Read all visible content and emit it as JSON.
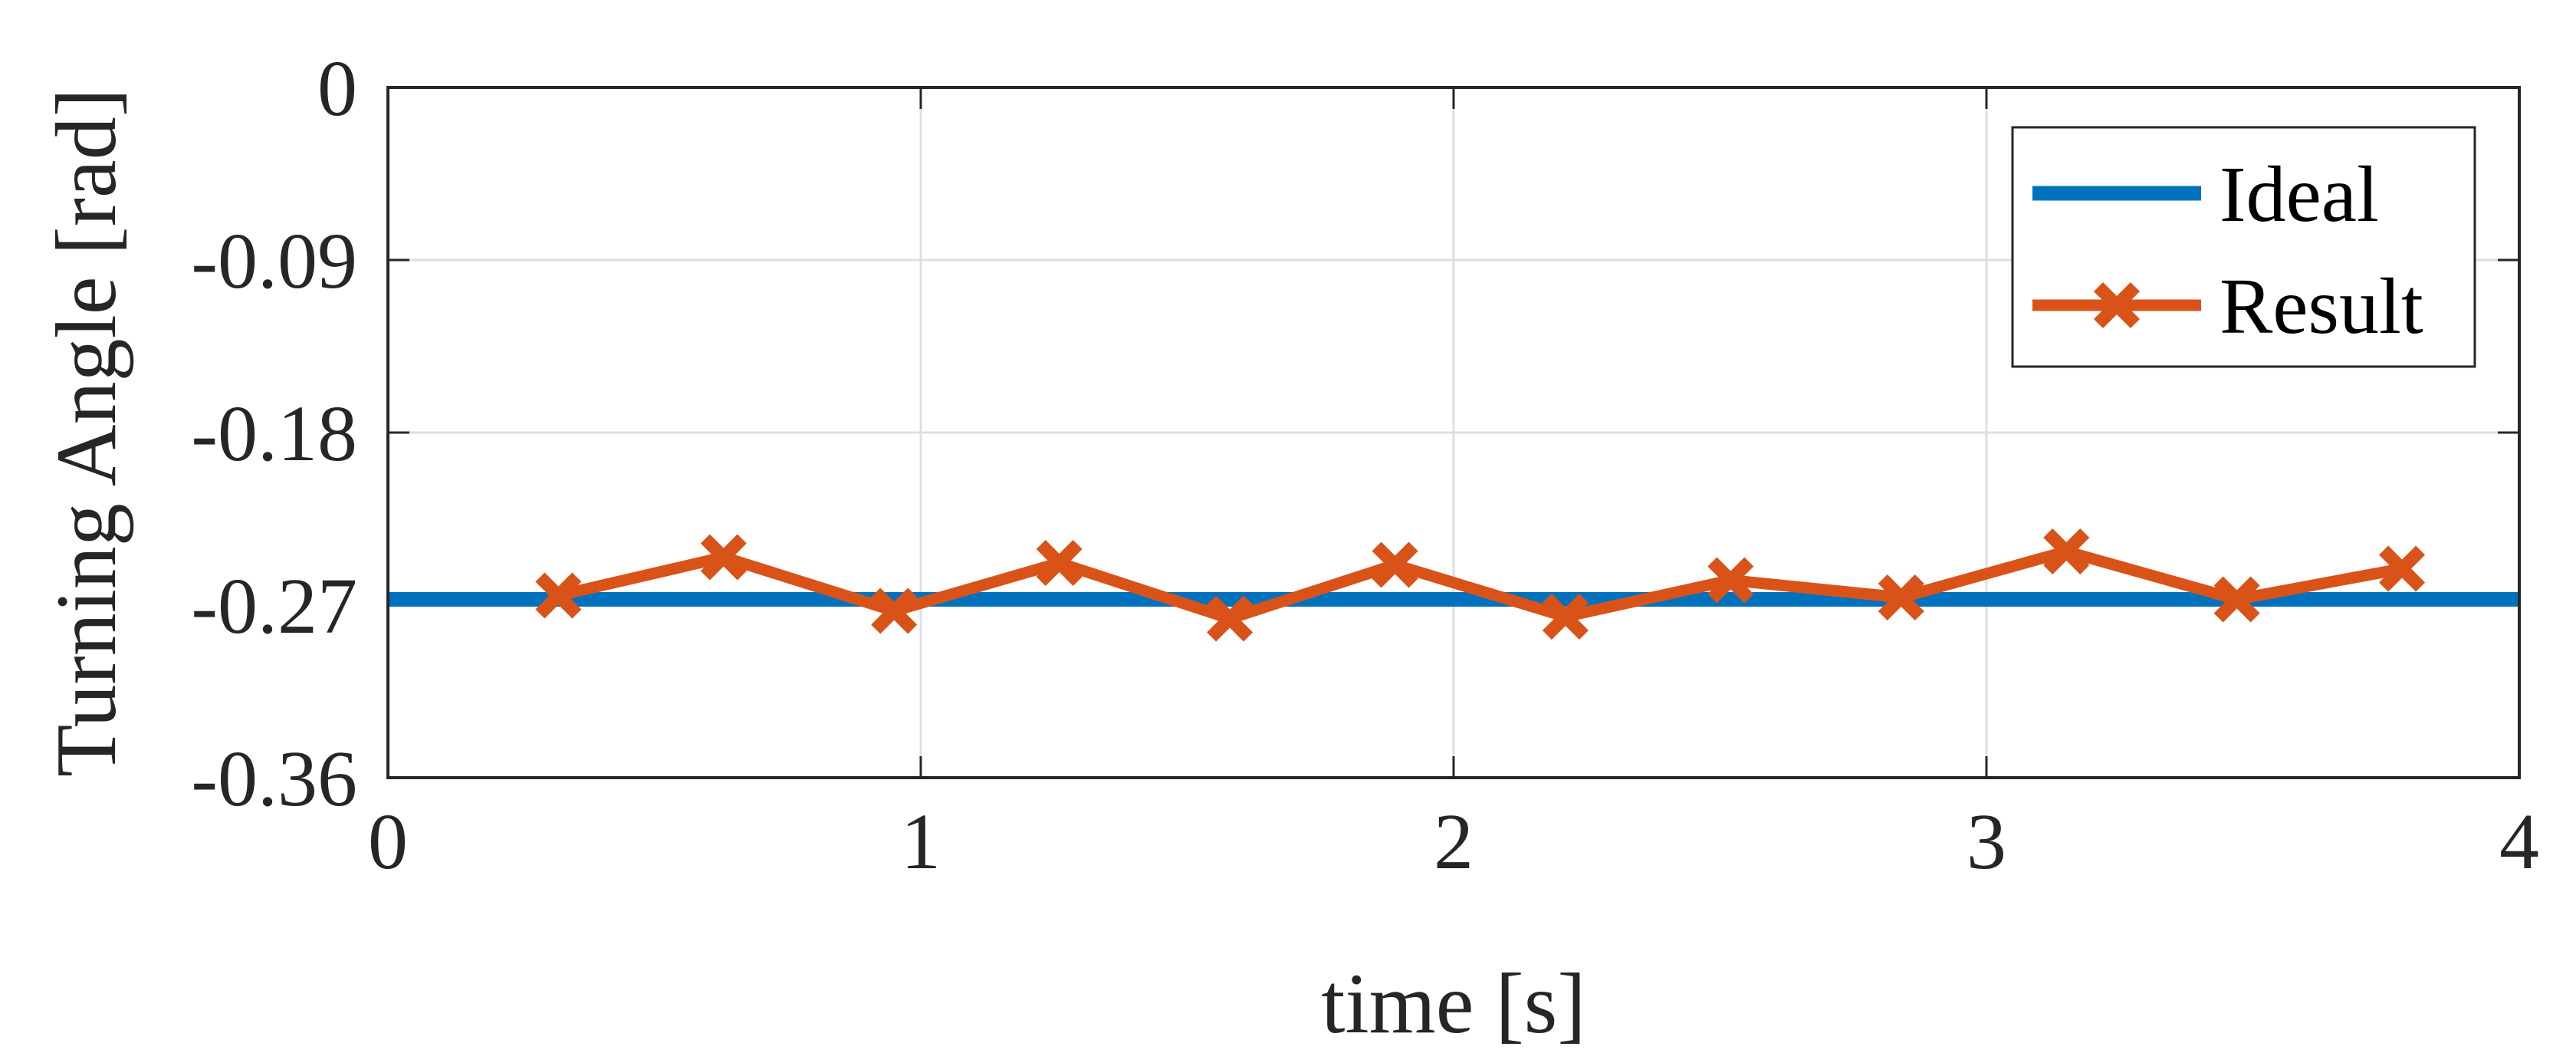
{
  "chart_data": {
    "type": "line",
    "xlabel": "time [s]",
    "ylabel": "Turning Angle [rad]",
    "xlim": [
      0,
      4
    ],
    "ylim": [
      -0.36,
      0
    ],
    "xticks": [
      0,
      1,
      2,
      3,
      4
    ],
    "xtick_labels": [
      "0",
      "1",
      "2",
      "3",
      "4"
    ],
    "yticks": [
      0,
      -0.09,
      -0.18,
      -0.27,
      -0.36
    ],
    "ytick_labels": [
      "0",
      "-0.09",
      "-0.18",
      "-0.27",
      "-0.36"
    ],
    "grid": true,
    "legend_position": "top-right",
    "series": [
      {
        "name": "Ideal",
        "color": "#0072bd",
        "marker": "none",
        "x": [
          0,
          4
        ],
        "y": [
          -0.267,
          -0.267
        ]
      },
      {
        "name": "Result",
        "color": "#d95319",
        "marker": "x",
        "x": [
          0.32,
          0.63,
          0.95,
          1.26,
          1.58,
          1.89,
          2.21,
          2.52,
          2.84,
          3.15,
          3.47,
          3.78
        ],
        "y": [
          -0.265,
          -0.245,
          -0.273,
          -0.248,
          -0.277,
          -0.249,
          -0.276,
          -0.257,
          -0.266,
          -0.242,
          -0.267,
          -0.251
        ]
      }
    ]
  }
}
